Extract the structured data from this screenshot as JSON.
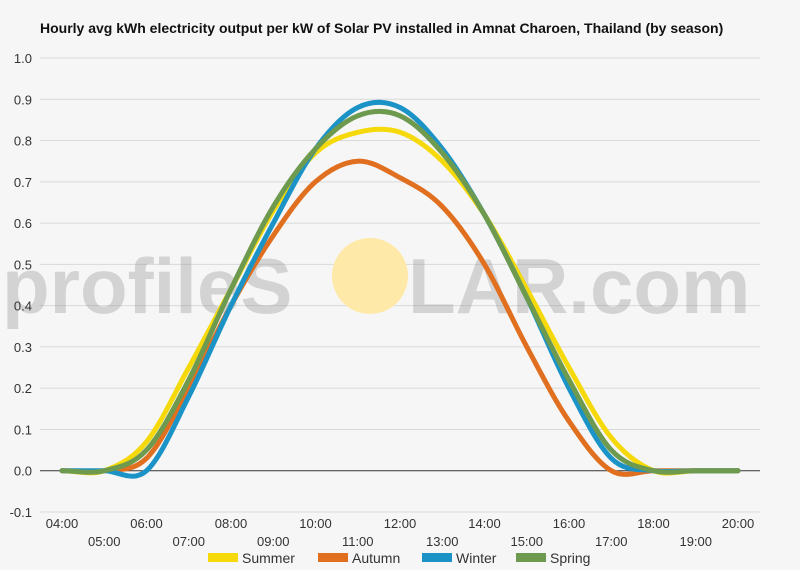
{
  "watermark": {
    "left": "profileS",
    "right": "LAR.com",
    "sun_color": "#ffe9a8"
  },
  "chart_data": {
    "type": "line",
    "title": "Hourly avg kWh electricity output per kW of Solar PV installed in Amnat Charoen, Thailand (by season)",
    "xlabel": "",
    "ylabel": "",
    "ylim": [
      -0.1,
      1.0
    ],
    "yticks": [
      "-0.1",
      "0.0",
      "0.1",
      "0.2",
      "0.3",
      "0.4",
      "0.5",
      "0.6",
      "0.7",
      "0.8",
      "0.9",
      "1.0"
    ],
    "xlim": [
      4,
      20
    ],
    "x": [
      4,
      5,
      6,
      7,
      8,
      9,
      10,
      11,
      12,
      13,
      14,
      15,
      16,
      17,
      18,
      19,
      20
    ],
    "xticks_top": [
      "04:00",
      "06:00",
      "08:00",
      "10:00",
      "12:00",
      "14:00",
      "16:00",
      "18:00",
      "20:00"
    ],
    "xticks_bottom": [
      "05:00",
      "07:00",
      "09:00",
      "11:00",
      "13:00",
      "15:00",
      "17:00",
      "19:00"
    ],
    "grid": true,
    "legend_position": "bottom",
    "series": [
      {
        "name": "Summer",
        "color": "#f5d90a",
        "values": [
          0.0,
          0.0,
          0.07,
          0.25,
          0.44,
          0.63,
          0.77,
          0.82,
          0.82,
          0.75,
          0.62,
          0.44,
          0.25,
          0.08,
          0.0,
          0.0,
          0.0
        ]
      },
      {
        "name": "Autumn",
        "color": "#e07020",
        "values": [
          0.0,
          0.0,
          0.03,
          0.2,
          0.4,
          0.57,
          0.7,
          0.75,
          0.71,
          0.64,
          0.5,
          0.3,
          0.12,
          0.0,
          0.0,
          0.0,
          0.0
        ]
      },
      {
        "name": "Winter",
        "color": "#1b93c7",
        "values": [
          0.0,
          0.0,
          0.0,
          0.18,
          0.4,
          0.6,
          0.78,
          0.88,
          0.88,
          0.78,
          0.62,
          0.42,
          0.2,
          0.03,
          0.0,
          0.0,
          0.0
        ]
      },
      {
        "name": "Spring",
        "color": "#6e9a4f",
        "values": [
          0.0,
          0.0,
          0.05,
          0.22,
          0.44,
          0.64,
          0.78,
          0.86,
          0.86,
          0.77,
          0.62,
          0.42,
          0.22,
          0.05,
          0.0,
          0.0,
          0.0
        ]
      }
    ]
  }
}
